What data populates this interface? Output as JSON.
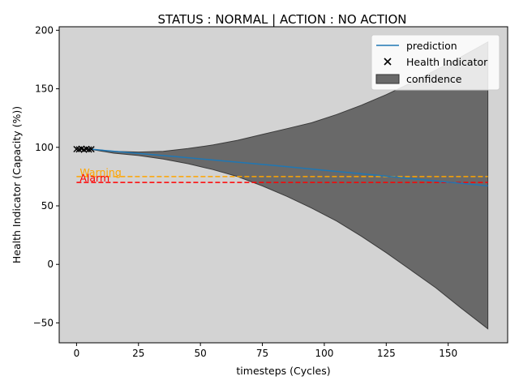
{
  "chart_data": {
    "type": "line",
    "title": "STATUS : NORMAL | ACTION : NO ACTION",
    "xlabel": "timesteps (Cycles)",
    "ylabel": "Health Indicator (Capacity (%))",
    "xlim": [
      -7,
      174
    ],
    "ylim": [
      -67,
      203
    ],
    "xticks": [
      0,
      25,
      50,
      75,
      100,
      125,
      150
    ],
    "yticks": [
      -50,
      0,
      50,
      100,
      150,
      200
    ],
    "xtick_labels": [
      "0",
      "25",
      "50",
      "75",
      "100",
      "125",
      "150"
    ],
    "ytick_labels": [
      "−50",
      "0",
      "50",
      "100",
      "150",
      "200"
    ],
    "grid": false,
    "background_color": "#d3d3d3",
    "legend": {
      "position": "top-right",
      "entries": [
        "prediction",
        "Health Indicator",
        "confidence"
      ]
    },
    "prediction": {
      "name": "prediction",
      "color": "#1f77b4",
      "x": [
        5,
        20,
        40,
        60,
        80,
        100,
        120,
        140,
        166
      ],
      "y": [
        98.5,
        95.7,
        92,
        88.3,
        84.4,
        80.4,
        76.4,
        72.2,
        67
      ]
    },
    "confidence": {
      "name": "confidence",
      "color": "#696969",
      "x": [
        5,
        15,
        25,
        35,
        45,
        55,
        65,
        75,
        85,
        95,
        105,
        115,
        125,
        135,
        145,
        155,
        166
      ],
      "upper": [
        98.5,
        96.5,
        96,
        96.5,
        99,
        102,
        106,
        111,
        116,
        121,
        128,
        136,
        145,
        155,
        166,
        177,
        190
      ],
      "lower": [
        98.5,
        95,
        93,
        90,
        86,
        81,
        75,
        67,
        58,
        48,
        37,
        24,
        10,
        -5,
        -20,
        -37,
        -55
      ]
    },
    "health_indicator": {
      "name": "Health Indicator",
      "marker": "x",
      "color": "#000000",
      "x": [
        0,
        1,
        2,
        3,
        4,
        5,
        6
      ],
      "y": [
        98.5,
        98.2,
        98.8,
        97.9,
        98.6,
        98.1,
        98.4
      ]
    },
    "thresholds": [
      {
        "label": "Warning",
        "value": 75,
        "color": "#ffa500",
        "x_range": [
          0,
          166
        ]
      },
      {
        "label": "Alarm",
        "value": 70,
        "color": "#ff0000",
        "x_range": [
          0,
          166
        ]
      }
    ]
  }
}
